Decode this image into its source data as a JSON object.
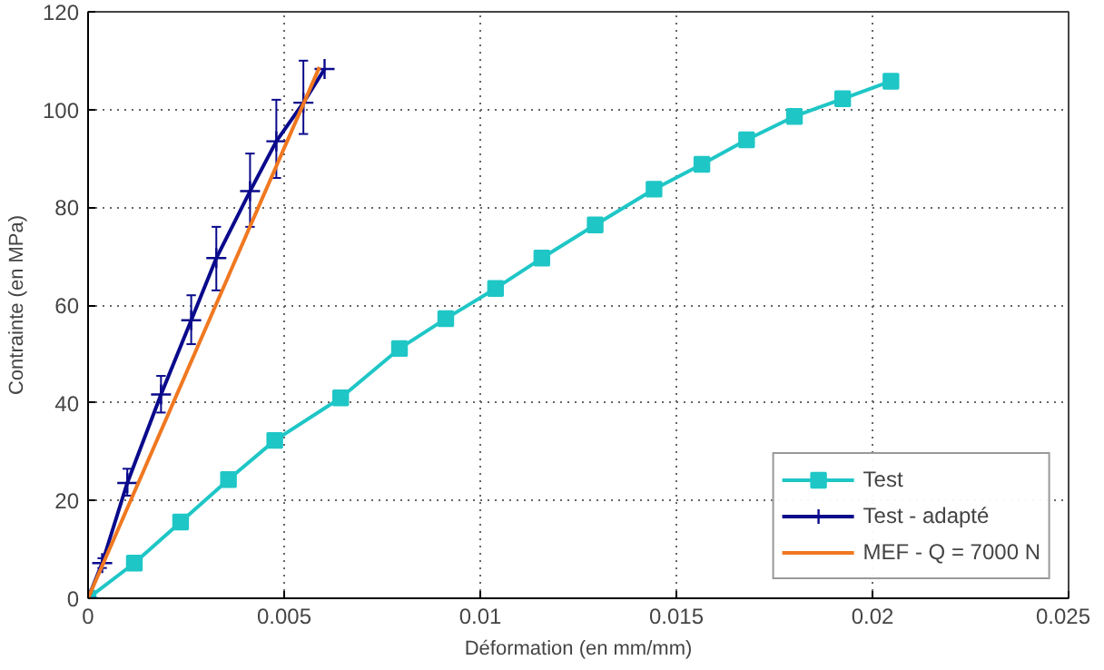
{
  "chart_data": {
    "type": "line",
    "xlabel": "Déformation (en mm/mm)",
    "ylabel": "Contrainte (en MPa)",
    "xlim": [
      0,
      0.025
    ],
    "xticks": [
      0,
      0.005,
      0.01,
      0.015,
      0.02,
      0.025
    ],
    "ylim": [
      0,
      120
    ],
    "yticks": [
      0,
      20,
      40,
      60,
      80,
      100,
      120
    ],
    "grid": true,
    "legend": "bottom right",
    "line_style": "solid",
    "series": [
      {
        "name": "Test",
        "color": "#1fc6c6",
        "marker": "square",
        "x": [
          0,
          0.00118,
          0.00236,
          0.00358,
          0.00476,
          0.00644,
          0.00794,
          0.00912,
          0.01039,
          0.01157,
          0.01293,
          0.01443,
          0.01565,
          0.01679,
          0.01801,
          0.01924,
          0.02047
        ],
        "values": [
          0,
          7.2,
          15.6,
          24.3,
          32.3,
          41,
          51.1,
          57.2,
          63.4,
          69.6,
          76.4,
          83.7,
          88.8,
          93.8,
          98.6,
          102.2,
          105.8
        ]
      },
      {
        "name": "Test - adapté",
        "color": "#0a0a8c",
        "marker": "cross",
        "x": [
          0,
          0.00036,
          0.001,
          0.00186,
          0.00263,
          0.00327,
          0.00413,
          0.0048,
          0.00549,
          0.00603
        ],
        "values": [
          0,
          7.2,
          23.6,
          41.7,
          56.9,
          69.6,
          83.3,
          93.5,
          101.4,
          108.3
        ],
        "errors": [
          null,
          1,
          [
            21,
            26.5
          ],
          [
            38,
            45.5
          ],
          [
            52,
            62
          ],
          [
            63,
            76
          ],
          [
            76,
            91
          ],
          [
            86,
            102
          ],
          [
            95,
            110
          ],
          null
        ]
      },
      {
        "name": "MEF - Q = 7000 N",
        "color": "#f07820",
        "marker": "none",
        "x": [
          0,
          0.0059
        ],
        "values": [
          0,
          108.7
        ]
      }
    ]
  }
}
